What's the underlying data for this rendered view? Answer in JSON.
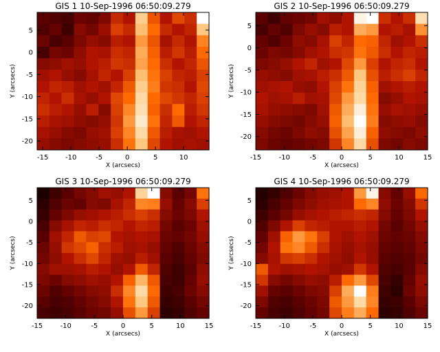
{
  "figure": {
    "colormap": [
      "#000000",
      "#5a0000",
      "#b01400",
      "#ff6a00",
      "#ffc880",
      "#ffffff"
    ]
  },
  "chart_data": [
    {
      "type": "heatmap",
      "title": "GIS 1 10-Sep-1996 06:50:09.279",
      "xlabel": "X (arcsecs)",
      "ylabel": "Y (arcsecs)",
      "xlim": [
        -16,
        14.5
      ],
      "ylim": [
        -22,
        9
      ],
      "xticks": [
        -15,
        -10,
        -5,
        0,
        5,
        10
      ],
      "yticks": [
        -20,
        -15,
        -10,
        -5,
        0,
        5
      ],
      "grid": "14x12 pixels, rows listed top to bottom, intensity 0-1",
      "values": [
        [
          0.2,
          0.18,
          0.16,
          0.24,
          0.22,
          0.28,
          0.45,
          0.4,
          0.82,
          0.55,
          0.4,
          0.52,
          0.46,
          1.0
        ],
        [
          0.18,
          0.22,
          0.14,
          0.3,
          0.26,
          0.35,
          0.5,
          0.45,
          0.78,
          0.6,
          0.45,
          0.4,
          0.44,
          0.8
        ],
        [
          0.24,
          0.16,
          0.2,
          0.28,
          0.34,
          0.3,
          0.42,
          0.4,
          0.7,
          0.55,
          0.38,
          0.45,
          0.4,
          0.65
        ],
        [
          0.16,
          0.26,
          0.24,
          0.32,
          0.4,
          0.38,
          0.46,
          0.44,
          0.74,
          0.58,
          0.42,
          0.48,
          0.42,
          0.6
        ],
        [
          0.3,
          0.32,
          0.36,
          0.34,
          0.4,
          0.42,
          0.48,
          0.46,
          0.72,
          0.6,
          0.46,
          0.4,
          0.44,
          0.55
        ],
        [
          0.36,
          0.4,
          0.34,
          0.3,
          0.38,
          0.44,
          0.4,
          0.5,
          0.78,
          0.62,
          0.5,
          0.44,
          0.42,
          0.5
        ],
        [
          0.4,
          0.44,
          0.42,
          0.36,
          0.4,
          0.36,
          0.44,
          0.56,
          0.82,
          0.64,
          0.48,
          0.46,
          0.4,
          0.52
        ],
        [
          0.44,
          0.4,
          0.46,
          0.38,
          0.34,
          0.4,
          0.52,
          0.6,
          0.86,
          0.6,
          0.52,
          0.48,
          0.44,
          0.5
        ],
        [
          0.46,
          0.42,
          0.4,
          0.34,
          0.42,
          0.3,
          0.5,
          0.66,
          0.88,
          0.58,
          0.46,
          0.6,
          0.42,
          0.48
        ],
        [
          0.42,
          0.38,
          0.36,
          0.32,
          0.3,
          0.34,
          0.48,
          0.7,
          0.92,
          0.62,
          0.44,
          0.56,
          0.4,
          0.44
        ],
        [
          0.38,
          0.34,
          0.3,
          0.28,
          0.34,
          0.36,
          0.5,
          0.66,
          0.86,
          0.56,
          0.42,
          0.38,
          0.36,
          0.4
        ],
        [
          0.34,
          0.3,
          0.28,
          0.3,
          0.32,
          0.34,
          0.46,
          0.62,
          0.8,
          0.52,
          0.4,
          0.36,
          0.38,
          0.36
        ]
      ]
    },
    {
      "type": "heatmap",
      "title": "GIS 2 10-Sep-1996 06:50:09.279",
      "xlabel": "X (arcsecs)",
      "ylabel": "Y (arcsecs)",
      "xlim": [
        -15,
        15
      ],
      "ylim": [
        -23,
        8
      ],
      "xticks": [
        -15,
        -10,
        -5,
        0,
        5,
        10,
        15
      ],
      "yticks": [
        -20,
        -15,
        -10,
        -5,
        0,
        5
      ],
      "grid": "14x12 pixels, rows listed top to bottom, intensity 0-1",
      "values": [
        [
          0.2,
          0.14,
          0.22,
          0.24,
          0.26,
          0.36,
          0.32,
          0.4,
          0.96,
          1.0,
          0.46,
          0.4,
          0.46,
          0.88
        ],
        [
          0.16,
          0.22,
          0.18,
          0.28,
          0.34,
          0.3,
          0.42,
          0.4,
          0.74,
          0.7,
          0.4,
          0.42,
          0.38,
          0.68
        ],
        [
          0.22,
          0.18,
          0.24,
          0.32,
          0.3,
          0.38,
          0.5,
          0.44,
          0.6,
          0.58,
          0.44,
          0.36,
          0.4,
          0.46
        ],
        [
          0.24,
          0.28,
          0.26,
          0.3,
          0.36,
          0.4,
          0.46,
          0.48,
          0.62,
          0.56,
          0.46,
          0.4,
          0.44,
          0.42
        ],
        [
          0.28,
          0.3,
          0.34,
          0.4,
          0.44,
          0.36,
          0.4,
          0.52,
          0.7,
          0.5,
          0.4,
          0.44,
          0.46,
          0.4
        ],
        [
          0.34,
          0.32,
          0.3,
          0.36,
          0.38,
          0.42,
          0.46,
          0.56,
          0.8,
          0.54,
          0.42,
          0.46,
          0.5,
          0.44
        ],
        [
          0.36,
          0.38,
          0.4,
          0.34,
          0.32,
          0.4,
          0.5,
          0.62,
          0.84,
          0.58,
          0.36,
          0.4,
          0.42,
          0.4
        ],
        [
          0.4,
          0.36,
          0.38,
          0.42,
          0.36,
          0.38,
          0.52,
          0.7,
          0.86,
          0.6,
          0.3,
          0.34,
          0.4,
          0.38
        ],
        [
          0.38,
          0.34,
          0.32,
          0.3,
          0.28,
          0.36,
          0.56,
          0.74,
          0.94,
          0.62,
          0.34,
          0.38,
          0.36,
          0.34
        ],
        [
          0.34,
          0.3,
          0.28,
          0.26,
          0.3,
          0.34,
          0.58,
          0.78,
          1.0,
          0.64,
          0.3,
          0.32,
          0.34,
          0.3
        ],
        [
          0.3,
          0.26,
          0.24,
          0.28,
          0.32,
          0.3,
          0.54,
          0.72,
          0.94,
          0.58,
          0.32,
          0.3,
          0.28,
          0.32
        ],
        [
          0.28,
          0.24,
          0.22,
          0.24,
          0.26,
          0.28,
          0.48,
          0.66,
          0.86,
          0.54,
          0.28,
          0.26,
          0.3,
          0.28
        ]
      ]
    },
    {
      "type": "heatmap",
      "title": "GIS 3 10-Sep-1996 06:50:09.279",
      "xlabel": "X (arcsecs)",
      "ylabel": "Y (arcsecs)",
      "xlim": [
        -15,
        15
      ],
      "ylim": [
        -23,
        8
      ],
      "xticks": [
        -15,
        -10,
        -5,
        0,
        5,
        10,
        15
      ],
      "yticks": [
        -20,
        -15,
        -10,
        -5,
        0,
        5
      ],
      "grid": "14x12 pixels, rows listed top to bottom, intensity 0-1",
      "values": [
        [
          0.06,
          0.14,
          0.2,
          0.26,
          0.3,
          0.36,
          0.34,
          0.4,
          0.84,
          1.0,
          0.3,
          0.2,
          0.26,
          0.62
        ],
        [
          0.1,
          0.18,
          0.24,
          0.22,
          0.3,
          0.28,
          0.38,
          0.44,
          0.66,
          0.64,
          0.34,
          0.22,
          0.3,
          0.5
        ],
        [
          0.12,
          0.22,
          0.28,
          0.34,
          0.36,
          0.4,
          0.42,
          0.46,
          0.5,
          0.46,
          0.3,
          0.24,
          0.28,
          0.4
        ],
        [
          0.16,
          0.3,
          0.38,
          0.44,
          0.42,
          0.46,
          0.44,
          0.4,
          0.44,
          0.42,
          0.26,
          0.2,
          0.24,
          0.36
        ],
        [
          0.2,
          0.36,
          0.44,
          0.56,
          0.5,
          0.52,
          0.4,
          0.38,
          0.4,
          0.38,
          0.24,
          0.22,
          0.26,
          0.34
        ],
        [
          0.24,
          0.34,
          0.48,
          0.52,
          0.58,
          0.46,
          0.42,
          0.36,
          0.38,
          0.34,
          0.22,
          0.18,
          0.24,
          0.3
        ],
        [
          0.26,
          0.32,
          0.4,
          0.46,
          0.52,
          0.44,
          0.36,
          0.34,
          0.42,
          0.36,
          0.2,
          0.16,
          0.22,
          0.28
        ],
        [
          0.3,
          0.36,
          0.36,
          0.38,
          0.42,
          0.4,
          0.34,
          0.4,
          0.56,
          0.44,
          0.18,
          0.14,
          0.2,
          0.32
        ],
        [
          0.28,
          0.24,
          0.3,
          0.32,
          0.36,
          0.34,
          0.4,
          0.58,
          0.76,
          0.56,
          0.16,
          0.14,
          0.22,
          0.34
        ],
        [
          0.24,
          0.18,
          0.22,
          0.26,
          0.3,
          0.32,
          0.46,
          0.66,
          0.86,
          0.6,
          0.14,
          0.16,
          0.24,
          0.3
        ],
        [
          0.2,
          0.16,
          0.18,
          0.22,
          0.26,
          0.3,
          0.4,
          0.62,
          0.8,
          0.56,
          0.12,
          0.14,
          0.2,
          0.26
        ],
        [
          0.16,
          0.14,
          0.16,
          0.2,
          0.24,
          0.26,
          0.34,
          0.54,
          0.7,
          0.5,
          0.1,
          0.12,
          0.18,
          0.22
        ]
      ]
    },
    {
      "type": "heatmap",
      "title": "GIS 4 10-Sep-1996 06:50:09.279",
      "xlabel": "X (arcsecs)",
      "ylabel": "Y (arcsecs)",
      "xlim": [
        -15,
        15
      ],
      "ylim": [
        -23,
        8
      ],
      "xticks": [
        -15,
        -10,
        -5,
        0,
        5,
        10,
        15
      ],
      "yticks": [
        -20,
        -15,
        -10,
        -5,
        0,
        5
      ],
      "grid": "14x12 pixels, rows listed top to bottom, intensity 0-1",
      "values": [
        [
          0.08,
          0.12,
          0.18,
          0.24,
          0.3,
          0.34,
          0.36,
          0.4,
          0.7,
          0.96,
          0.3,
          0.22,
          0.34,
          0.6
        ],
        [
          0.1,
          0.16,
          0.22,
          0.28,
          0.32,
          0.36,
          0.38,
          0.4,
          0.6,
          0.66,
          0.32,
          0.24,
          0.3,
          0.48
        ],
        [
          0.14,
          0.2,
          0.26,
          0.34,
          0.38,
          0.4,
          0.42,
          0.44,
          0.46,
          0.44,
          0.3,
          0.22,
          0.28,
          0.4
        ],
        [
          0.18,
          0.28,
          0.4,
          0.5,
          0.44,
          0.42,
          0.4,
          0.4,
          0.42,
          0.4,
          0.26,
          0.2,
          0.26,
          0.34
        ],
        [
          0.22,
          0.36,
          0.58,
          0.7,
          0.62,
          0.5,
          0.4,
          0.36,
          0.4,
          0.36,
          0.24,
          0.22,
          0.24,
          0.3
        ],
        [
          0.26,
          0.4,
          0.62,
          0.66,
          0.56,
          0.46,
          0.38,
          0.34,
          0.38,
          0.34,
          0.22,
          0.2,
          0.22,
          0.28
        ],
        [
          0.3,
          0.38,
          0.48,
          0.5,
          0.46,
          0.4,
          0.36,
          0.32,
          0.4,
          0.34,
          0.2,
          0.18,
          0.2,
          0.26
        ],
        [
          0.56,
          0.4,
          0.36,
          0.38,
          0.4,
          0.38,
          0.34,
          0.36,
          0.48,
          0.4,
          0.18,
          0.16,
          0.2,
          0.3
        ],
        [
          0.48,
          0.3,
          0.26,
          0.3,
          0.34,
          0.32,
          0.42,
          0.6,
          0.7,
          0.52,
          0.16,
          0.12,
          0.22,
          0.34
        ],
        [
          0.36,
          0.22,
          0.2,
          0.24,
          0.28,
          0.3,
          0.5,
          0.74,
          1.0,
          0.64,
          0.14,
          0.1,
          0.24,
          0.32
        ],
        [
          0.28,
          0.18,
          0.16,
          0.2,
          0.24,
          0.28,
          0.56,
          0.7,
          0.86,
          0.66,
          0.12,
          0.14,
          0.2,
          0.28
        ],
        [
          0.22,
          0.16,
          0.14,
          0.18,
          0.22,
          0.26,
          0.52,
          0.64,
          0.74,
          0.6,
          0.1,
          0.12,
          0.18,
          0.24
        ]
      ]
    }
  ]
}
